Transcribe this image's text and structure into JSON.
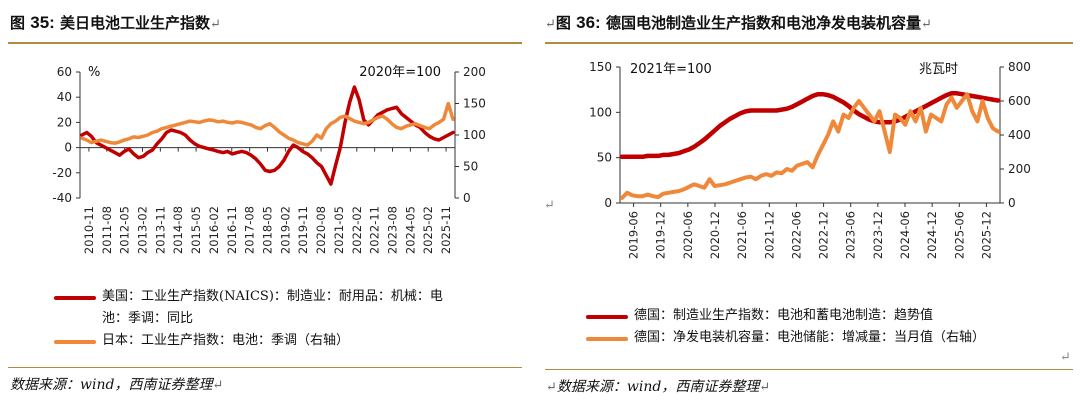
{
  "left": {
    "title_prefix": "图 ",
    "title_num": "35:",
    "title_text": " 美日电池工业生产指数",
    "source": "数据来源：wind，西南证券整理",
    "legend": [
      {
        "label_line1": "美国：工业生产指数(NAICS)：制造业：耐用品：机械：电",
        "label_line2": "池：季调：同比",
        "color": "#c00000"
      },
      {
        "label_line1": "日本：工业生产指数：电池：季调（右轴）",
        "label_line2": "",
        "color": "#f0883a"
      }
    ]
  },
  "right": {
    "title_prefix": "图 ",
    "title_num": "36:",
    "title_text": " 德国电池制造业生产指数和电池净发电装机容量",
    "source": "数据来源：wind，西南证券整理",
    "legend": [
      {
        "label": "德国：制造业生产指数：电池和蓄电池制造：趋势值",
        "color": "#c00000"
      },
      {
        "label": "德国：净发电装机容量：电池储能：增减量：当月值（右轴）",
        "color": "#f0883a"
      }
    ]
  },
  "chart_data": [
    {
      "type": "line",
      "note_left_unit": "%",
      "note_right": "2020年=100",
      "x_ticks": [
        "2010-11",
        "2011-08",
        "2012-05",
        "2013-02",
        "2013-11",
        "2014-08",
        "2015-05",
        "2016-02",
        "2016-11",
        "2017-08",
        "2018-05",
        "2019-02",
        "2019-11",
        "2020-08",
        "2021-05",
        "2022-02",
        "2022-11",
        "2023-08",
        "2024-05",
        "2025-02",
        "2025-11"
      ],
      "y_left": {
        "min": -40,
        "max": 60,
        "ticks": [
          -40,
          -20,
          0,
          20,
          40,
          60
        ]
      },
      "y_right": {
        "min": 0,
        "max": 200,
        "ticks": [
          0,
          50,
          100,
          150,
          200
        ]
      },
      "series": [
        {
          "name": "美国：工业生产指数(NAICS)：制造业：耐用品：机械：电池：季调：同比",
          "axis": "left",
          "color": "#c00000",
          "values": [
            10,
            12,
            9,
            4,
            2,
            0,
            -2,
            -4,
            -6,
            -3,
            -1,
            -5,
            -8,
            -7,
            -4,
            -2,
            3,
            7,
            12,
            14,
            13,
            12,
            10,
            6,
            3,
            1,
            0,
            -1,
            -2,
            -3,
            -4,
            -3,
            -5,
            -4,
            -3,
            -4,
            -6,
            -9,
            -13,
            -18,
            -19,
            -18,
            -15,
            -10,
            -3,
            2,
            0,
            -3,
            -5,
            -8,
            -12,
            -15,
            -22,
            -29,
            -14,
            0,
            20,
            36,
            48,
            38,
            22,
            18,
            22,
            26,
            28,
            30,
            31,
            32,
            27,
            24,
            21,
            18,
            16,
            12,
            9,
            7,
            6,
            8,
            10,
            12
          ]
        },
        {
          "name": "日本：工业生产指数：电池：季调",
          "axis": "right",
          "color": "#f0883a",
          "values": [
            95,
            92,
            88,
            90,
            92,
            90,
            88,
            87,
            89,
            92,
            94,
            97,
            96,
            98,
            100,
            104,
            106,
            110,
            112,
            114,
            116,
            118,
            120,
            122,
            121,
            120,
            122,
            124,
            123,
            121,
            122,
            120,
            119,
            121,
            120,
            118,
            116,
            112,
            110,
            115,
            118,
            112,
            105,
            100,
            95,
            92,
            88,
            86,
            84,
            90,
            100,
            95,
            110,
            118,
            122,
            128,
            130,
            126,
            122,
            120,
            118,
            120,
            124,
            128,
            130,
            125,
            118,
            112,
            110,
            114,
            116,
            118,
            115,
            112,
            110,
            116,
            120,
            125,
            150,
            125
          ]
        }
      ]
    },
    {
      "type": "line",
      "note_left": "2021年=100",
      "note_right": "兆瓦时",
      "x_ticks": [
        "2019-06",
        "2019-12",
        "2020-06",
        "2020-12",
        "2021-06",
        "2021-12",
        "2022-06",
        "2022-12",
        "2023-06",
        "2023-12",
        "2024-06",
        "2024-12",
        "2025-06",
        "2025-12"
      ],
      "y_left": {
        "min": 0,
        "max": 150,
        "ticks": [
          0,
          50,
          100,
          150
        ]
      },
      "y_right": {
        "min": 0,
        "max": 800,
        "ticks": [
          0,
          200,
          400,
          600,
          800
        ]
      },
      "series": [
        {
          "name": "德国：制造业生产指数：电池和蓄电池制造：趋势值",
          "axis": "left",
          "color": "#c00000",
          "values": [
            51,
            51,
            51,
            51,
            51,
            52,
            52,
            52,
            53,
            53,
            54,
            55,
            57,
            59,
            62,
            66,
            70,
            75,
            80,
            85,
            89,
            93,
            96,
            99,
            101,
            102,
            102,
            102,
            102,
            102,
            102,
            103,
            104,
            106,
            109,
            112,
            115,
            118,
            120,
            120,
            119,
            117,
            114,
            111,
            107,
            102,
            98,
            95,
            92,
            90,
            89,
            89,
            89,
            90,
            92,
            95,
            98,
            101,
            104,
            107,
            110,
            113,
            116,
            119,
            121,
            121,
            120,
            119,
            118,
            117,
            116,
            115,
            114,
            113
          ]
        },
        {
          "name": "德国：净发电装机容量：电池储能：增减量：当月值",
          "axis": "right",
          "color": "#f0883a",
          "values": [
            30,
            60,
            45,
            40,
            40,
            50,
            40,
            35,
            55,
            60,
            65,
            70,
            80,
            95,
            110,
            100,
            90,
            140,
            100,
            105,
            110,
            120,
            130,
            140,
            150,
            155,
            140,
            160,
            170,
            160,
            180,
            175,
            200,
            190,
            220,
            230,
            240,
            210,
            280,
            340,
            400,
            480,
            420,
            520,
            500,
            560,
            600,
            560,
            520,
            480,
            540,
            420,
            300,
            520,
            500,
            460,
            540,
            480,
            560,
            420,
            520,
            500,
            480,
            580,
            620,
            560,
            600,
            640,
            540,
            480,
            600,
            500,
            440,
            420
          ]
        }
      ]
    }
  ]
}
